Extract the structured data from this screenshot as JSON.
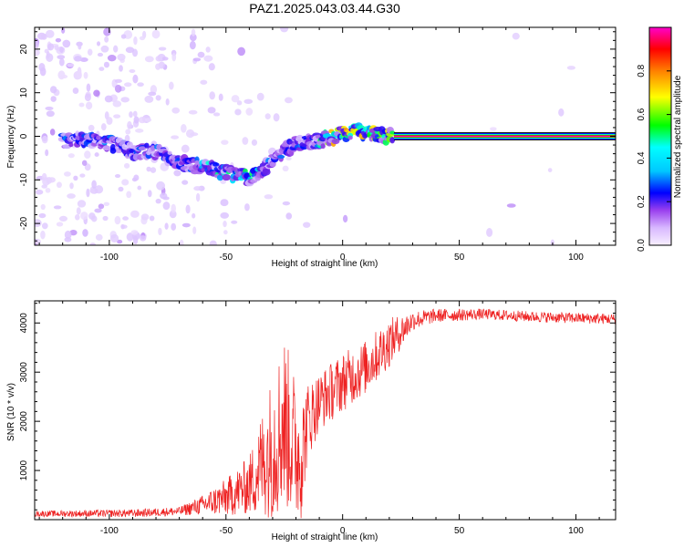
{
  "title": "PAZ1.2025.043.03.44.G30",
  "chart_data": [
    {
      "type": "heatmap",
      "xlabel": "Height of straight line (km)",
      "ylabel": "Frequency (Hz)",
      "xlim": [
        -132,
        117
      ],
      "ylim": [
        -25,
        25
      ],
      "xticks": [
        -100,
        -50,
        0,
        50,
        100
      ],
      "yticks": [
        -20,
        -10,
        0,
        10,
        20
      ],
      "colorbar": {
        "label": "Normalized spectral amplitude",
        "range": [
          0,
          1
        ],
        "ticks": [
          "0.0",
          "0.2",
          "0.4",
          "0.6",
          "0.8"
        ],
        "colors": [
          "#f8f0ff",
          "#d2b4ff",
          "#8a2be2",
          "#0000ff",
          "#00ffff",
          "#00ff00",
          "#ffff00",
          "#ff0000",
          "#ff00ff"
        ]
      },
      "ridge": [
        {
          "x": -120,
          "y": -1.0
        },
        {
          "x": -110,
          "y": -0.5
        },
        {
          "x": -100,
          "y": -1.5
        },
        {
          "x": -90,
          "y": -3.5
        },
        {
          "x": -80,
          "y": -3.5
        },
        {
          "x": -70,
          "y": -6.0
        },
        {
          "x": -60,
          "y": -7.0
        },
        {
          "x": -50,
          "y": -8.5
        },
        {
          "x": -40,
          "y": -9.5
        },
        {
          "x": -32,
          "y": -6.5
        },
        {
          "x": -25,
          "y": -3.0
        },
        {
          "x": -18,
          "y": -1.5
        },
        {
          "x": -10,
          "y": -1.0
        },
        {
          "x": 0,
          "y": 0.5
        },
        {
          "x": 5,
          "y": 1.5
        },
        {
          "x": 10,
          "y": 0.5
        },
        {
          "x": 15,
          "y": 0.2
        },
        {
          "x": 22,
          "y": 0
        }
      ],
      "tone": {
        "x_start": 22,
        "x_end": 117,
        "frequency": 0,
        "amplitude": 1.0
      }
    },
    {
      "type": "line",
      "xlabel": "Height of straight line (km)",
      "ylabel": "SNR (10 * v/v)",
      "xlim": [
        -132,
        117
      ],
      "ylim": [
        0,
        4450
      ],
      "xticks": [
        -100,
        -50,
        0,
        50,
        100
      ],
      "yticks": [
        1000,
        2000,
        3000,
        4000
      ],
      "color": "#ee2222",
      "envelope": [
        {
          "x": -132,
          "base": 120,
          "amp": 60
        },
        {
          "x": -90,
          "base": 130,
          "amp": 80
        },
        {
          "x": -70,
          "base": 170,
          "amp": 90
        },
        {
          "x": -60,
          "base": 300,
          "amp": 200
        },
        {
          "x": -50,
          "base": 450,
          "amp": 380
        },
        {
          "x": -40,
          "base": 700,
          "amp": 600
        },
        {
          "x": -30,
          "base": 1500,
          "amp": 1500
        },
        {
          "x": -25,
          "base": 2000,
          "amp": 1800
        },
        {
          "x": -18,
          "base": 1200,
          "amp": 1300
        },
        {
          "x": -15,
          "base": 2000,
          "amp": 800
        },
        {
          "x": -10,
          "base": 2400,
          "amp": 600
        },
        {
          "x": 0,
          "base": 2800,
          "amp": 600
        },
        {
          "x": 10,
          "base": 3100,
          "amp": 550
        },
        {
          "x": 20,
          "base": 3600,
          "amp": 500
        },
        {
          "x": 30,
          "base": 4050,
          "amp": 200
        },
        {
          "x": 40,
          "base": 4150,
          "amp": 140
        },
        {
          "x": 60,
          "base": 4180,
          "amp": 110
        },
        {
          "x": 80,
          "base": 4130,
          "amp": 110
        },
        {
          "x": 100,
          "base": 4100,
          "amp": 110
        },
        {
          "x": 117,
          "base": 4080,
          "amp": 110
        }
      ]
    }
  ]
}
